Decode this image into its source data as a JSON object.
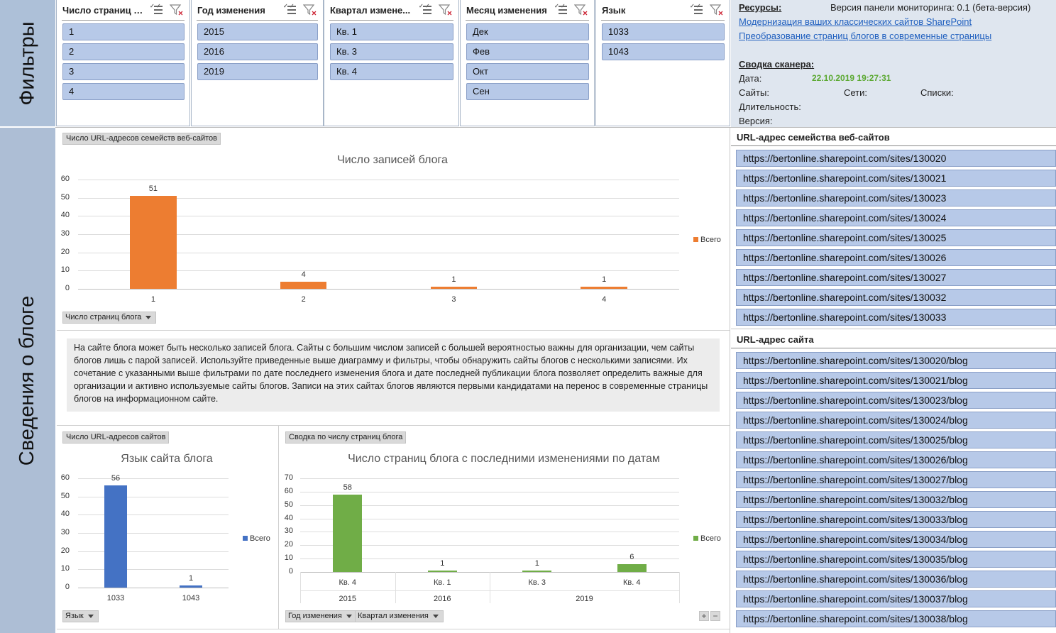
{
  "bands": {
    "filters": "Фильтры",
    "blog_info": "Сведения о блоге"
  },
  "slicers": [
    {
      "title": "Число страниц бл...",
      "items": [
        "1",
        "2",
        "3",
        "4"
      ]
    },
    {
      "title": "Год изменения",
      "items": [
        "2015",
        "2016",
        "2019"
      ]
    },
    {
      "title": "Квартал измене...",
      "items": [
        "Кв. 1",
        "Кв. 3",
        "Кв. 4"
      ]
    },
    {
      "title": "Месяц изменения",
      "items": [
        "Дек",
        "Фев",
        "Окт",
        "Сен"
      ]
    },
    {
      "title": "Язык",
      "items": [
        "1033",
        "1043"
      ]
    }
  ],
  "resources": {
    "label": "Ресурсы:",
    "version": "Версия панели мониторинга: 0.1 (бета-версия)",
    "link1": "Модернизация ваших классических сайтов SharePoint",
    "link2": "Преобразование страниц блогов в современные страницы"
  },
  "scanner": {
    "title": "Сводка сканера:",
    "date_label": "Дата:",
    "date_value": "22.10.2019 19:27:31",
    "sites_label": "Сайты:",
    "webs_label": "Сети:",
    "lists_label": "Списки:",
    "duration_label": "Длительность:",
    "version_label": "Версия:"
  },
  "site_collection_panel": {
    "title": "URL-адрес семейства веб-сайтов",
    "urls": [
      "https://bertonline.sharepoint.com/sites/130020",
      "https://bertonline.sharepoint.com/sites/130021",
      "https://bertonline.sharepoint.com/sites/130023",
      "https://bertonline.sharepoint.com/sites/130024",
      "https://bertonline.sharepoint.com/sites/130025",
      "https://bertonline.sharepoint.com/sites/130026",
      "https://bertonline.sharepoint.com/sites/130027",
      "https://bertonline.sharepoint.com/sites/130032",
      "https://bertonline.sharepoint.com/sites/130033"
    ]
  },
  "site_url_panel": {
    "title": "URL-адрес сайта",
    "urls": [
      "https://bertonline.sharepoint.com/sites/130020/blog",
      "https://bertonline.sharepoint.com/sites/130021/blog",
      "https://bertonline.sharepoint.com/sites/130023/blog",
      "https://bertonline.sharepoint.com/sites/130024/blog",
      "https://bertonline.sharepoint.com/sites/130025/blog",
      "https://bertonline.sharepoint.com/sites/130026/blog",
      "https://bertonline.sharepoint.com/sites/130027/blog",
      "https://bertonline.sharepoint.com/sites/130032/blog",
      "https://bertonline.sharepoint.com/sites/130033/blog",
      "https://bertonline.sharepoint.com/sites/130034/blog",
      "https://bertonline.sharepoint.com/sites/130035/blog",
      "https://bertonline.sharepoint.com/sites/130036/blog",
      "https://bertonline.sharepoint.com/sites/130037/blog",
      "https://bertonline.sharepoint.com/sites/130038/blog"
    ]
  },
  "description": "На сайте блога может быть несколько записей блога. Сайты с большим числом записей с большей вероятностью важны для организации, чем сайты блогов лишь с парой записей. Используйте приведенные выше диаграмму и фильтры, чтобы обнаружить сайты блогов с несколькими записями. Их сочетание с указанными выше фильтрами по дате последнего изменения блога и дате последней публикации блога позволяет определить важные для организации и активно используемые сайты блогов. Записи на этих сайтах блогов являются первыми кандидатами на перенос в современные страницы блогов на информационном сайте.",
  "chart_tags": {
    "chart1": "Число URL-адресов семейств веб-сайтов",
    "chart1_field": "Число страниц блога",
    "chart2": "Число URL-адресов сайтов",
    "chart2_field": "Язык",
    "chart3": "Сводка по числу страниц блога",
    "chart3_field1": "Год изменения",
    "chart3_field2": "Квартал изменения"
  },
  "colors": {
    "orange": "#ed7d31",
    "blue": "#4472c4",
    "green": "#70ad47",
    "band": "#adc0d8",
    "slicer_item": "#b7c9e8"
  },
  "chart_data": [
    {
      "type": "bar",
      "title": "Число записей блога",
      "categories": [
        "1",
        "2",
        "3",
        "4"
      ],
      "series": [
        {
          "name": "Всего",
          "values": [
            51,
            4,
            1,
            1
          ]
        }
      ],
      "yticks": [
        0,
        10,
        20,
        30,
        40,
        50,
        60
      ],
      "ylim": [
        0,
        60
      ],
      "legend": "right"
    },
    {
      "type": "bar",
      "title": "Язык сайта блога",
      "categories": [
        "1033",
        "1043"
      ],
      "series": [
        {
          "name": "Всего",
          "values": [
            56,
            1
          ]
        }
      ],
      "yticks": [
        0,
        10,
        20,
        30,
        40,
        50,
        60
      ],
      "ylim": [
        0,
        60
      ],
      "legend": "right"
    },
    {
      "type": "bar",
      "title": "Число страниц блога с последними изменениями по датам",
      "categories": [
        "Кв. 4",
        "Кв. 1",
        "Кв. 3",
        "Кв. 4"
      ],
      "groups": [
        {
          "label": "2015",
          "span": 1
        },
        {
          "label": "2016",
          "span": 1
        },
        {
          "label": "2019",
          "span": 2
        }
      ],
      "series": [
        {
          "name": "Всего",
          "values": [
            58,
            1,
            1,
            6
          ]
        }
      ],
      "yticks": [
        0,
        10,
        20,
        30,
        40,
        50,
        60,
        70
      ],
      "ylim": [
        0,
        70
      ],
      "legend": "right"
    }
  ]
}
